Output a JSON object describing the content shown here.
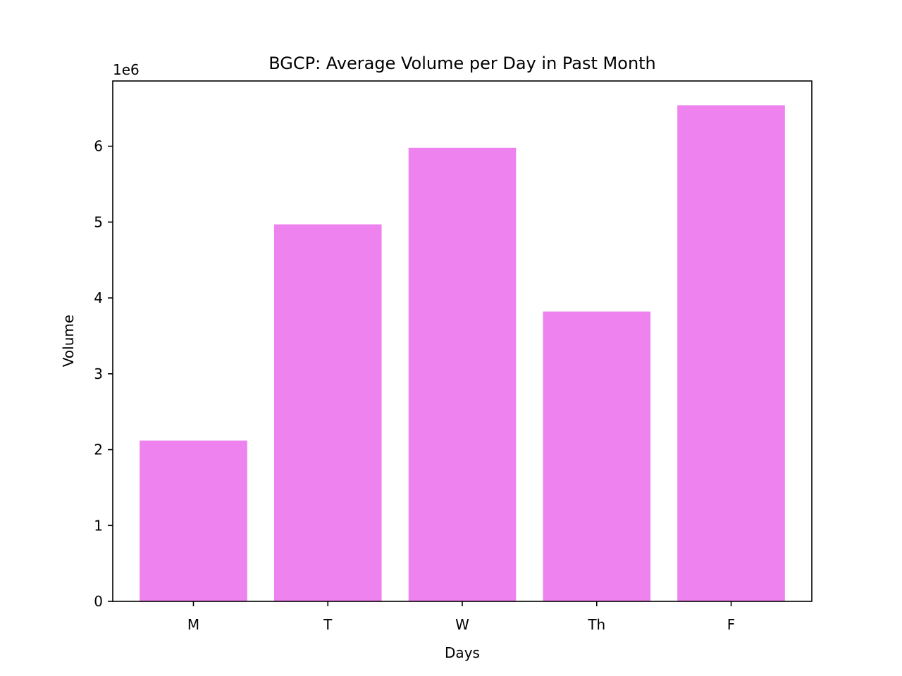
{
  "chart_data": {
    "type": "bar",
    "title": "BGCP: Average Volume per Day in Past Month",
    "xlabel": "Days",
    "ylabel": "Volume",
    "y_offset_label": "1e6",
    "categories": [
      "M",
      "T",
      "W",
      "Th",
      "F"
    ],
    "values": [
      2120000,
      4970000,
      5980000,
      3820000,
      6540000
    ],
    "ylim": [
      0,
      6860000
    ],
    "yticks": [
      0,
      1000000,
      2000000,
      3000000,
      4000000,
      5000000,
      6000000
    ],
    "ytick_labels": [
      "0",
      "1",
      "2",
      "3",
      "4",
      "5",
      "6"
    ],
    "bar_color": "#ee82ee",
    "grid": false,
    "legend": "none"
  }
}
